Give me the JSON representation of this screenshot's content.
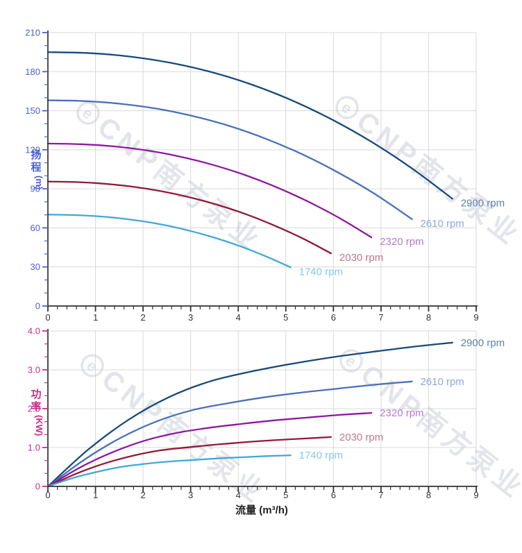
{
  "watermark": {
    "logo_letter": "e",
    "text": "CNP南方泵业",
    "color": "#c7cbd6"
  },
  "x_axis_title": "流量 (m³/h)",
  "chart_data": [
    {
      "type": "line",
      "name": "head-vs-flow",
      "title": "",
      "ylabel": "扬程 (m)",
      "ylabel_chars": [
        "扬",
        "程"
      ],
      "ylabel_unit": "(m)",
      "xlabel": "流量 (m³/h)",
      "axis_color": "#4a5fd4",
      "xlim": [
        0,
        9
      ],
      "ylim": [
        0,
        210
      ],
      "x_major_step": 1,
      "y_major_step": 30,
      "x_tick_labels": [
        "0",
        "1",
        "2",
        "3",
        "4",
        "5",
        "6",
        "7",
        "8",
        "9"
      ],
      "y_tick_labels": [
        "0",
        "30",
        "60",
        "90",
        "120",
        "150",
        "180",
        "210"
      ],
      "grid": true,
      "legend_position": "right-of-curve-end",
      "series": [
        {
          "name": "2900 rpm",
          "color": "#174a7c",
          "label_color": "#5e82aa",
          "x": [
            0,
            0.85,
            1.7,
            2.55,
            3.4,
            4.25,
            5.1,
            5.95,
            6.8,
            7.65,
            8.5
          ],
          "y": [
            195,
            194.3,
            191.7,
            187,
            180,
            170.5,
            158.4,
            143.6,
            126.1,
            105.7,
            82.4
          ]
        },
        {
          "name": "2610 rpm",
          "color": "#4a70ba",
          "label_color": "#8ea8dc",
          "x": [
            0,
            0.77,
            1.53,
            2.3,
            3.06,
            3.83,
            4.59,
            5.36,
            6.12,
            6.89,
            7.65
          ],
          "y": [
            158,
            157.4,
            155.3,
            151.5,
            145.8,
            138.1,
            128.3,
            116.3,
            102.1,
            85.6,
            66.7
          ]
        },
        {
          "name": "2320 rpm",
          "color": "#8e189e",
          "label_color": "#b878cb",
          "x": [
            0,
            0.68,
            1.36,
            2.04,
            2.72,
            3.4,
            4.08,
            4.76,
            5.44,
            6.12,
            6.8
          ],
          "y": [
            124.8,
            124.3,
            122.7,
            119.7,
            115.2,
            109.1,
            101.4,
            91.9,
            80.7,
            67.7,
            52.7
          ]
        },
        {
          "name": "2030 rpm",
          "color": "#921a38",
          "label_color": "#c27789",
          "x": [
            0,
            0.6,
            1.19,
            1.79,
            2.38,
            2.98,
            3.57,
            4.17,
            4.76,
            5.36,
            5.95
          ],
          "y": [
            95.6,
            95.2,
            93.9,
            91.6,
            88.2,
            83.5,
            77.6,
            70.4,
            61.8,
            51.8,
            40.4
          ]
        },
        {
          "name": "1740 rpm",
          "color": "#3fa8da",
          "label_color": "#86c8ea",
          "x": [
            0,
            0.51,
            1.02,
            1.53,
            2.04,
            2.55,
            3.06,
            3.57,
            4.08,
            4.59,
            5.1
          ],
          "y": [
            70.2,
            69.9,
            69,
            67.3,
            64.8,
            61.4,
            57,
            51.7,
            45.4,
            38,
            29.7
          ]
        }
      ]
    },
    {
      "type": "line",
      "name": "power-vs-flow",
      "title": "",
      "ylabel": "功率 (KW)",
      "ylabel_chars": [
        "功",
        "率"
      ],
      "ylabel_unit": "(KW)",
      "xlabel": "流量 (m³/h)",
      "axis_color": "#c42e8e",
      "xlim": [
        0,
        9
      ],
      "ylim": [
        0,
        4
      ],
      "x_major_step": 1,
      "y_major_step": 1,
      "x_tick_labels": [
        "0",
        "1",
        "2",
        "3",
        "4",
        "5",
        "6",
        "7",
        "8",
        "9"
      ],
      "y_tick_labels": [
        "0",
        "1.0",
        "2.0",
        "3.0",
        "4.0"
      ],
      "grid": true,
      "legend_position": "right-of-curve-end",
      "series": [
        {
          "name": "2900 rpm",
          "color": "#174a7c",
          "label_color": "#5e82aa",
          "x": [
            0,
            0.85,
            1.7,
            2.55,
            3.4,
            4.25,
            5.1,
            5.95,
            6.8,
            7.65,
            8.5
          ],
          "y": [
            0,
            0.95,
            1.72,
            2.3,
            2.7,
            2.95,
            3.15,
            3.32,
            3.46,
            3.59,
            3.7
          ]
        },
        {
          "name": "2610 rpm",
          "color": "#4a70ba",
          "label_color": "#8ea8dc",
          "x": [
            0,
            0.77,
            1.53,
            2.3,
            3.06,
            3.83,
            4.59,
            5.36,
            6.12,
            6.89,
            7.65
          ],
          "y": [
            0,
            0.69,
            1.25,
            1.68,
            1.97,
            2.15,
            2.3,
            2.42,
            2.52,
            2.62,
            2.7
          ]
        },
        {
          "name": "2320 rpm",
          "color": "#8e189e",
          "label_color": "#b878cb",
          "x": [
            0,
            0.68,
            1.36,
            2.04,
            2.72,
            3.4,
            4.08,
            4.76,
            5.44,
            6.12,
            6.8
          ],
          "y": [
            0,
            0.49,
            0.88,
            1.18,
            1.38,
            1.51,
            1.61,
            1.7,
            1.77,
            1.84,
            1.89
          ]
        },
        {
          "name": "2030 rpm",
          "color": "#921a38",
          "label_color": "#c27789",
          "x": [
            0,
            0.6,
            1.19,
            1.79,
            2.38,
            2.98,
            3.57,
            4.17,
            4.76,
            5.36,
            5.95
          ],
          "y": [
            0,
            0.33,
            0.59,
            0.79,
            0.93,
            1.01,
            1.08,
            1.14,
            1.19,
            1.23,
            1.27
          ]
        },
        {
          "name": "1740 rpm",
          "color": "#3fa8da",
          "label_color": "#86c8ea",
          "x": [
            0,
            0.51,
            1.02,
            1.53,
            2.04,
            2.55,
            3.06,
            3.57,
            4.08,
            4.59,
            5.1
          ],
          "y": [
            0,
            0.21,
            0.37,
            0.5,
            0.58,
            0.64,
            0.68,
            0.72,
            0.75,
            0.78,
            0.8
          ]
        }
      ]
    }
  ]
}
